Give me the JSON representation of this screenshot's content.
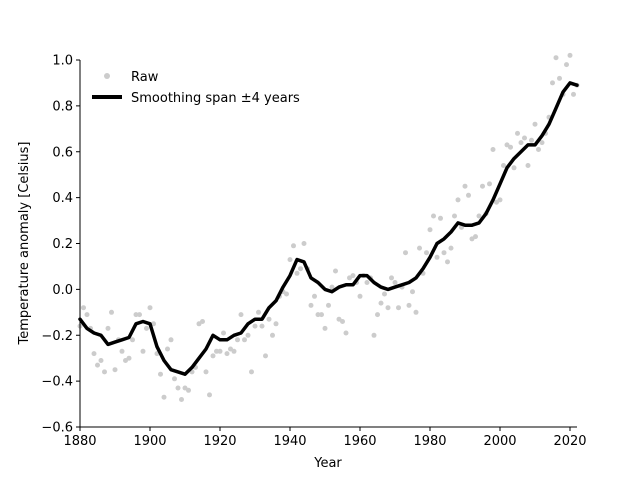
{
  "chart_data": {
    "type": "line",
    "title": "",
    "xlabel": "Year",
    "ylabel": "Temperature anomaly [Celsius]",
    "xlim": [
      1880,
      2022
    ],
    "ylim": [
      -0.6,
      1.0
    ],
    "xticks": [
      1880,
      1900,
      1920,
      1940,
      1960,
      1980,
      2000,
      2020
    ],
    "yticks": [
      -0.6,
      -0.4,
      -0.2,
      0.0,
      0.2,
      0.4,
      0.6,
      0.8,
      1.0
    ],
    "grid": false,
    "legend_position": "upper-left",
    "series": [
      {
        "name": "Raw",
        "style": "scatter",
        "color": "#cccccc",
        "x": [
          1880,
          1881,
          1882,
          1883,
          1884,
          1885,
          1886,
          1887,
          1888,
          1889,
          1890,
          1891,
          1892,
          1893,
          1894,
          1895,
          1896,
          1897,
          1898,
          1899,
          1900,
          1901,
          1902,
          1903,
          1904,
          1905,
          1906,
          1907,
          1908,
          1909,
          1910,
          1911,
          1912,
          1913,
          1914,
          1915,
          1916,
          1917,
          1918,
          1919,
          1920,
          1921,
          1922,
          1923,
          1924,
          1925,
          1926,
          1927,
          1928,
          1929,
          1930,
          1931,
          1932,
          1933,
          1934,
          1935,
          1936,
          1937,
          1938,
          1939,
          1940,
          1941,
          1942,
          1943,
          1944,
          1945,
          1946,
          1947,
          1948,
          1949,
          1950,
          1951,
          1952,
          1953,
          1954,
          1955,
          1956,
          1957,
          1958,
          1959,
          1960,
          1961,
          1962,
          1963,
          1964,
          1965,
          1966,
          1967,
          1968,
          1969,
          1970,
          1971,
          1972,
          1973,
          1974,
          1975,
          1976,
          1977,
          1978,
          1979,
          1980,
          1981,
          1982,
          1983,
          1984,
          1985,
          1986,
          1987,
          1988,
          1989,
          1990,
          1991,
          1992,
          1993,
          1994,
          1995,
          1996,
          1997,
          1998,
          1999,
          2000,
          2001,
          2002,
          2003,
          2004,
          2005,
          2006,
          2007,
          2008,
          2009,
          2010,
          2011,
          2012,
          2013,
          2014,
          2015,
          2016,
          2017,
          2018,
          2019,
          2020,
          2021,
          2022
        ],
        "y": [
          -0.16,
          -0.08,
          -0.11,
          -0.17,
          -0.28,
          -0.33,
          -0.31,
          -0.36,
          -0.17,
          -0.1,
          -0.35,
          -0.22,
          -0.27,
          -0.31,
          -0.3,
          -0.22,
          -0.11,
          -0.11,
          -0.27,
          -0.17,
          -0.08,
          -0.15,
          -0.28,
          -0.37,
          -0.47,
          -0.26,
          -0.22,
          -0.39,
          -0.43,
          -0.48,
          -0.43,
          -0.44,
          -0.36,
          -0.34,
          -0.15,
          -0.14,
          -0.36,
          -0.46,
          -0.29,
          -0.27,
          -0.27,
          -0.19,
          -0.28,
          -0.26,
          -0.27,
          -0.22,
          -0.11,
          -0.22,
          -0.2,
          -0.36,
          -0.16,
          -0.1,
          -0.16,
          -0.29,
          -0.13,
          -0.2,
          -0.15,
          -0.03,
          -0.01,
          -0.02,
          0.13,
          0.19,
          0.07,
          0.09,
          0.2,
          0.09,
          -0.07,
          -0.03,
          -0.11,
          -0.11,
          -0.17,
          -0.07,
          0.01,
          0.08,
          -0.13,
          -0.14,
          -0.19,
          0.05,
          0.06,
          0.03,
          -0.03,
          0.06,
          0.03,
          0.05,
          -0.2,
          -0.11,
          -0.06,
          -0.02,
          -0.08,
          0.05,
          0.03,
          -0.08,
          0.01,
          0.16,
          -0.07,
          -0.01,
          -0.1,
          0.18,
          0.07,
          0.16,
          0.26,
          0.32,
          0.14,
          0.31,
          0.16,
          0.12,
          0.18,
          0.32,
          0.39,
          0.27,
          0.45,
          0.41,
          0.22,
          0.23,
          0.32,
          0.45,
          0.33,
          0.46,
          0.61,
          0.38,
          0.39,
          0.54,
          0.63,
          0.62,
          0.53,
          0.68,
          0.64,
          0.66,
          0.54,
          0.65,
          0.72,
          0.61,
          0.64,
          0.68,
          0.75,
          0.9,
          1.01,
          0.92,
          0.85,
          0.98,
          1.02,
          0.85,
          0.89
        ]
      },
      {
        "name": "Smoothing span ±4 years",
        "style": "line",
        "color": "#000000",
        "x": [
          1880,
          1882,
          1884,
          1886,
          1888,
          1890,
          1892,
          1894,
          1896,
          1898,
          1900,
          1902,
          1904,
          1906,
          1908,
          1910,
          1912,
          1914,
          1916,
          1918,
          1920,
          1922,
          1924,
          1926,
          1928,
          1930,
          1932,
          1934,
          1936,
          1938,
          1940,
          1942,
          1944,
          1946,
          1948,
          1950,
          1952,
          1954,
          1956,
          1958,
          1960,
          1962,
          1964,
          1966,
          1968,
          1970,
          1972,
          1974,
          1976,
          1978,
          1980,
          1982,
          1984,
          1986,
          1988,
          1990,
          1992,
          1994,
          1996,
          1998,
          2000,
          2002,
          2004,
          2006,
          2008,
          2010,
          2012,
          2014,
          2016,
          2018,
          2020,
          2022
        ],
        "y": [
          -0.13,
          -0.17,
          -0.19,
          -0.2,
          -0.24,
          -0.23,
          -0.22,
          -0.21,
          -0.15,
          -0.14,
          -0.15,
          -0.25,
          -0.31,
          -0.35,
          -0.36,
          -0.37,
          -0.34,
          -0.3,
          -0.26,
          -0.2,
          -0.22,
          -0.22,
          -0.2,
          -0.19,
          -0.15,
          -0.13,
          -0.13,
          -0.08,
          -0.05,
          0.01,
          0.06,
          0.13,
          0.12,
          0.05,
          0.03,
          0.0,
          -0.01,
          0.01,
          0.02,
          0.02,
          0.06,
          0.06,
          0.03,
          0.01,
          0.0,
          0.01,
          0.02,
          0.03,
          0.05,
          0.09,
          0.14,
          0.2,
          0.22,
          0.25,
          0.29,
          0.28,
          0.28,
          0.29,
          0.33,
          0.39,
          0.46,
          0.53,
          0.57,
          0.6,
          0.63,
          0.63,
          0.67,
          0.72,
          0.79,
          0.86,
          0.9,
          0.89
        ]
      }
    ]
  }
}
